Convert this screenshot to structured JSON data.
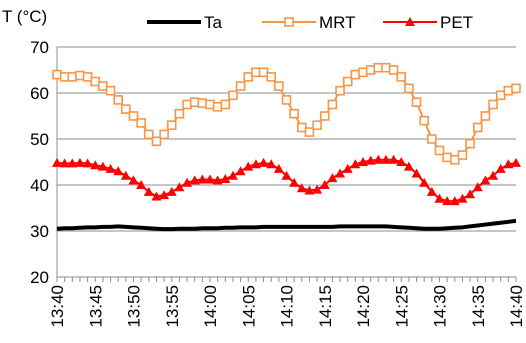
{
  "chart_data": {
    "type": "line",
    "ylabel": "T (°C)",
    "xlabel": "",
    "ylim": [
      20,
      70
    ],
    "yticks": [
      20,
      30,
      40,
      50,
      60,
      70
    ],
    "grid": "horizontal",
    "legend_position": "top",
    "x": [
      "13:40",
      "13:41",
      "13:42",
      "13:43",
      "13:44",
      "13:45",
      "13:46",
      "13:47",
      "13:48",
      "13:49",
      "13:50",
      "13:51",
      "13:52",
      "13:53",
      "13:54",
      "13:55",
      "13:56",
      "13:57",
      "13:58",
      "13:59",
      "14:00",
      "14:01",
      "14:02",
      "14:03",
      "14:04",
      "14:05",
      "14:06",
      "14:07",
      "14:08",
      "14:09",
      "14:10",
      "14:11",
      "14:12",
      "14:13",
      "14:14",
      "14:15",
      "14:16",
      "14:17",
      "14:18",
      "14:19",
      "14:20",
      "14:21",
      "14:22",
      "14:23",
      "14:24",
      "14:25",
      "14:26",
      "14:27",
      "14:28",
      "14:29",
      "14:30",
      "14:31",
      "14:32",
      "14:33",
      "14:34",
      "14:35",
      "14:36",
      "14:37",
      "14:38",
      "14:39",
      "14:40"
    ],
    "xticks": [
      "13:40",
      "13:45",
      "13:50",
      "13:55",
      "14:00",
      "14:05",
      "14:10",
      "14:15",
      "14:20",
      "14:25",
      "14:30",
      "14:35",
      "14:40"
    ],
    "series": [
      {
        "name": "Ta",
        "color": "#000000",
        "marker": "none",
        "values": [
          30.5,
          30.6,
          30.6,
          30.7,
          30.8,
          30.8,
          30.9,
          30.9,
          31.0,
          30.9,
          30.8,
          30.7,
          30.6,
          30.5,
          30.4,
          30.4,
          30.5,
          30.5,
          30.5,
          30.6,
          30.6,
          30.6,
          30.7,
          30.7,
          30.8,
          30.8,
          30.8,
          30.9,
          30.9,
          30.9,
          30.9,
          30.9,
          30.9,
          30.9,
          30.9,
          30.9,
          30.9,
          31.0,
          31.0,
          31.0,
          31.0,
          31.0,
          31.0,
          31.0,
          30.9,
          30.8,
          30.7,
          30.6,
          30.5,
          30.5,
          30.5,
          30.6,
          30.7,
          30.8,
          31.0,
          31.2,
          31.4,
          31.6,
          31.8,
          32.0,
          32.2
        ]
      },
      {
        "name": "MRT",
        "color": "#F79646",
        "marker": "square",
        "values": [
          64.0,
          63.5,
          63.5,
          63.8,
          63.5,
          62.5,
          61.5,
          60.5,
          58.5,
          56.5,
          55.0,
          53.5,
          51.0,
          49.5,
          51.0,
          53.0,
          55.5,
          57.5,
          58.0,
          57.8,
          57.5,
          57.0,
          57.5,
          59.5,
          61.5,
          63.5,
          64.5,
          64.5,
          63.5,
          61.5,
          58.5,
          55.5,
          52.5,
          51.5,
          53.0,
          55.0,
          57.5,
          60.5,
          62.5,
          64.0,
          64.5,
          65.0,
          65.5,
          65.5,
          65.0,
          63.5,
          61.0,
          58.0,
          54.0,
          50.0,
          47.5,
          46.0,
          45.5,
          46.5,
          49.0,
          52.5,
          55.0,
          57.5,
          59.5,
          60.5,
          61.0
        ]
      },
      {
        "name": "PET",
        "color": "#FF0000",
        "marker": "triangle",
        "values": [
          44.8,
          44.7,
          44.7,
          44.8,
          44.7,
          44.3,
          44.0,
          43.5,
          43.0,
          42.0,
          41.0,
          40.0,
          38.5,
          37.5,
          37.8,
          38.5,
          39.5,
          40.5,
          41.0,
          41.2,
          41.2,
          41.0,
          41.3,
          42.0,
          43.0,
          44.0,
          44.5,
          44.8,
          44.5,
          43.5,
          42.0,
          40.5,
          39.3,
          38.8,
          39.0,
          40.0,
          41.5,
          42.5,
          43.5,
          44.5,
          45.0,
          45.3,
          45.5,
          45.5,
          45.5,
          45.0,
          44.0,
          42.5,
          40.5,
          38.5,
          37.0,
          36.5,
          36.5,
          37.0,
          38.0,
          39.5,
          41.0,
          42.0,
          43.5,
          44.5,
          44.8
        ]
      }
    ]
  }
}
